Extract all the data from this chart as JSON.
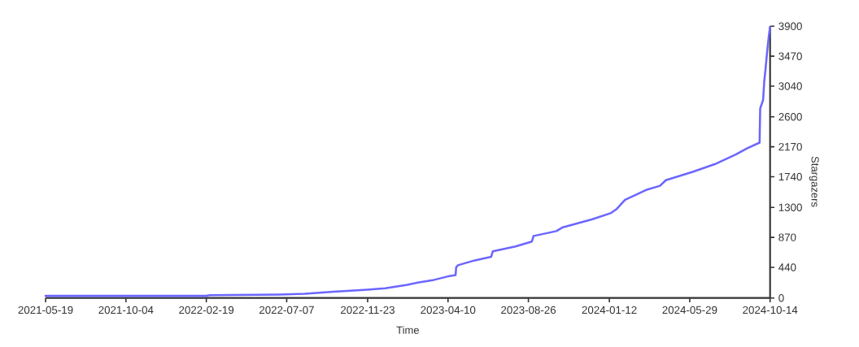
{
  "chart_data": {
    "type": "line",
    "xlabel": "Time",
    "ylabel": "Stargazers",
    "x": [
      "2021-05-19",
      "2021-10-04",
      "2022-02-19",
      "2022-02-25",
      "2022-06-24",
      "2022-08-07",
      "2022-09-25",
      "2022-11-22",
      "2022-12-23",
      "2023-01-30",
      "2023-02-17",
      "2023-03-17",
      "2023-04-10",
      "2023-04-23",
      "2023-04-24",
      "2023-04-27",
      "2023-05-26",
      "2023-06-23",
      "2023-06-26",
      "2023-08-04",
      "2023-09-01",
      "2023-09-04",
      "2023-10-13",
      "2023-10-23",
      "2023-12-14",
      "2024-01-15",
      "2024-01-25",
      "2024-02-08",
      "2024-03-15",
      "2024-04-08",
      "2024-04-18",
      "2024-06-03",
      "2024-07-11",
      "2024-08-16",
      "2024-09-05",
      "2024-09-26",
      "2024-09-27",
      "2024-10-02",
      "2024-10-04",
      "2024-10-06",
      "2024-10-09",
      "2024-10-12",
      "2024-10-14"
    ],
    "series": [
      {
        "color": "#6b66ff",
        "values": [
          30,
          30,
          30,
          40,
          50,
          60,
          90,
          120,
          140,
          190,
          220,
          260,
          310,
          330,
          440,
          470,
          540,
          590,
          670,
          740,
          810,
          890,
          960,
          1010,
          1130,
          1220,
          1280,
          1410,
          1550,
          1610,
          1690,
          1810,
          1920,
          2060,
          2150,
          2230,
          2720,
          2840,
          3110,
          3270,
          3540,
          3770,
          3890
        ]
      }
    ],
    "xlim": [
      "2021-05-19",
      "2024-10-14"
    ],
    "xticks": [
      "2021-05-19",
      "2021-10-04",
      "2022-02-19",
      "2022-07-07",
      "2022-11-23",
      "2023-04-10",
      "2023-08-26",
      "2024-01-12",
      "2024-05-29",
      "2024-10-14"
    ],
    "ylim": [
      0,
      3900
    ],
    "yticks": [
      0,
      440,
      870,
      1300,
      1740,
      2170,
      2600,
      3040,
      3470,
      3900
    ],
    "marker": "none",
    "line_style": "solid"
  }
}
